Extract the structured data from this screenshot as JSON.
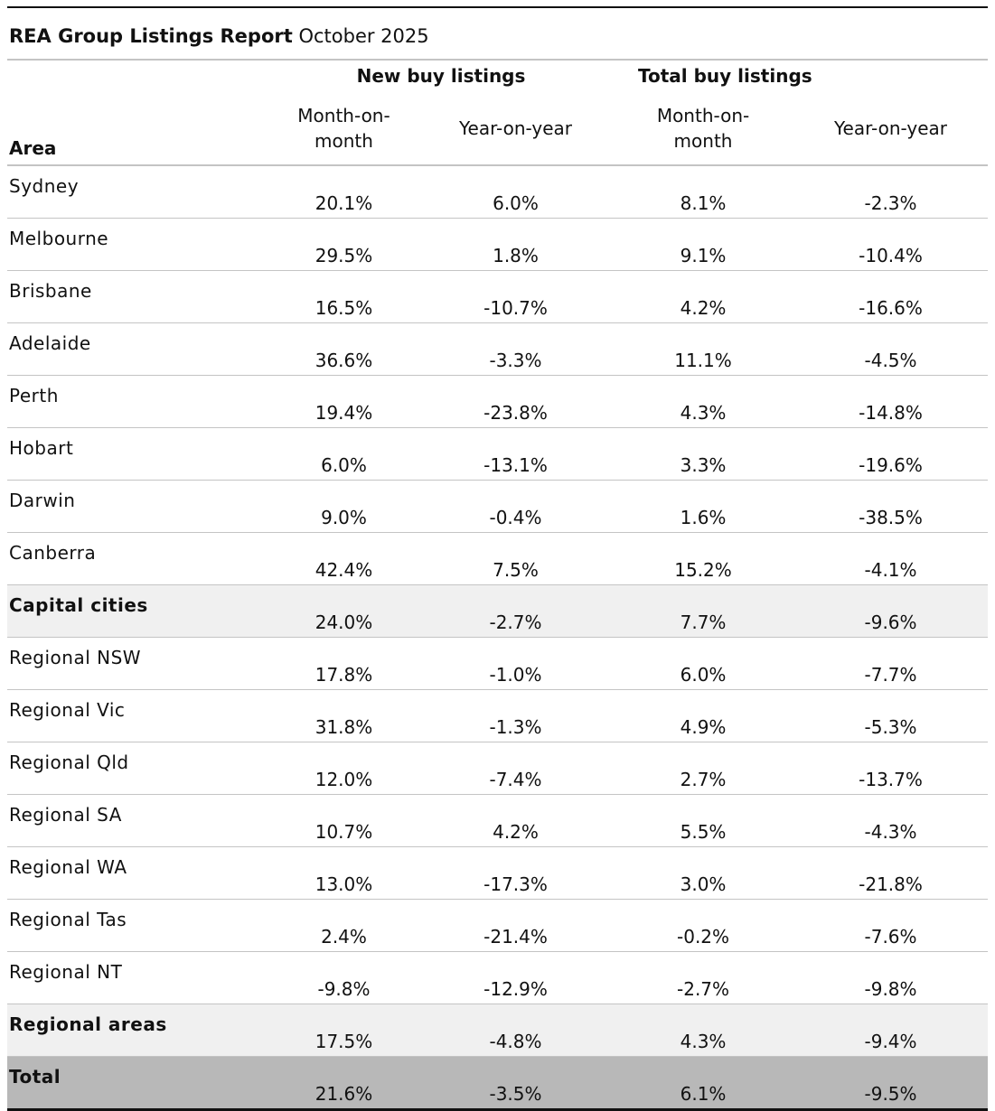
{
  "title": {
    "bold": "REA Group Listings Report",
    "subtitle": "October 2025"
  },
  "headers": {
    "groups": [
      "New buy listings",
      "Total buy listings"
    ],
    "area": "Area",
    "sub": [
      "Month-on-month",
      "Year-on-year",
      "Month-on-month",
      "Year-on-year"
    ]
  },
  "rows": [
    {
      "area": "Sydney",
      "type": "row",
      "v": [
        "20.1%",
        "6.0%",
        "8.1%",
        "-2.3%"
      ]
    },
    {
      "area": "Melbourne",
      "type": "row",
      "v": [
        "29.5%",
        "1.8%",
        "9.1%",
        "-10.4%"
      ]
    },
    {
      "area": "Brisbane",
      "type": "row",
      "v": [
        "16.5%",
        "-10.7%",
        "4.2%",
        "-16.6%"
      ]
    },
    {
      "area": "Adelaide",
      "type": "row",
      "v": [
        "36.6%",
        "-3.3%",
        "11.1%",
        "-4.5%"
      ]
    },
    {
      "area": "Perth",
      "type": "row",
      "v": [
        "19.4%",
        "-23.8%",
        "4.3%",
        "-14.8%"
      ]
    },
    {
      "area": "Hobart",
      "type": "row",
      "v": [
        "6.0%",
        "-13.1%",
        "3.3%",
        "-19.6%"
      ]
    },
    {
      "area": "Darwin",
      "type": "row",
      "v": [
        "9.0%",
        "-0.4%",
        "1.6%",
        "-38.5%"
      ]
    },
    {
      "area": "Canberra",
      "type": "row",
      "v": [
        "42.4%",
        "7.5%",
        "15.2%",
        "-4.1%"
      ]
    },
    {
      "area": "Capital cities",
      "type": "sum",
      "v": [
        "24.0%",
        "-2.7%",
        "7.7%",
        "-9.6%"
      ]
    },
    {
      "area": "Regional NSW",
      "type": "row",
      "v": [
        "17.8%",
        "-1.0%",
        "6.0%",
        "-7.7%"
      ]
    },
    {
      "area": "Regional Vic",
      "type": "row",
      "v": [
        "31.8%",
        "-1.3%",
        "4.9%",
        "-5.3%"
      ]
    },
    {
      "area": "Regional Qld",
      "type": "row",
      "v": [
        "12.0%",
        "-7.4%",
        "2.7%",
        "-13.7%"
      ]
    },
    {
      "area": "Regional SA",
      "type": "row",
      "v": [
        "10.7%",
        "4.2%",
        "5.5%",
        "-4.3%"
      ]
    },
    {
      "area": "Regional WA",
      "type": "row",
      "v": [
        "13.0%",
        "-17.3%",
        "3.0%",
        "-21.8%"
      ]
    },
    {
      "area": "Regional Tas",
      "type": "row",
      "v": [
        "2.4%",
        "-21.4%",
        "-0.2%",
        "-7.6%"
      ]
    },
    {
      "area": "Regional NT",
      "type": "row",
      "v": [
        "-9.8%",
        "-12.9%",
        "-2.7%",
        "-9.8%"
      ]
    },
    {
      "area": "Regional areas",
      "type": "sum",
      "v": [
        "17.5%",
        "-4.8%",
        "4.3%",
        "-9.4%"
      ]
    },
    {
      "area": "Total",
      "type": "total",
      "v": [
        "21.6%",
        "-3.5%",
        "6.1%",
        "-9.5%"
      ]
    }
  ]
}
